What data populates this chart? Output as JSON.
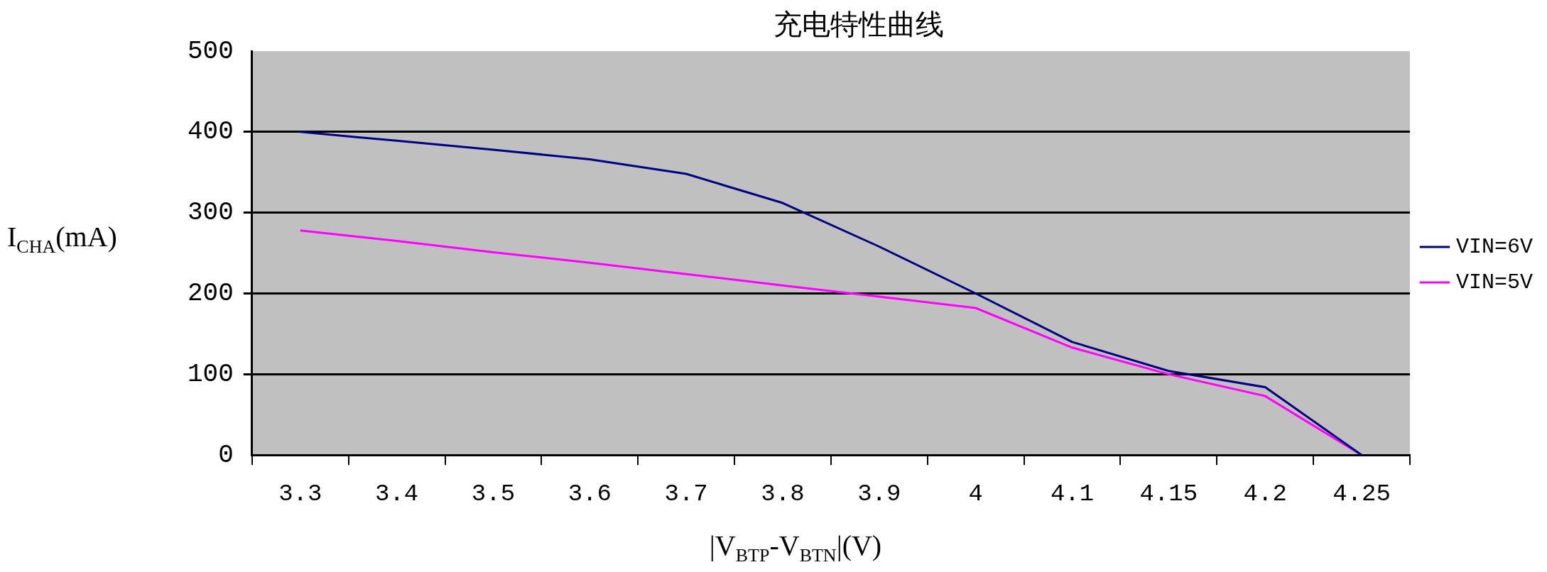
{
  "chart_data": {
    "type": "line",
    "title": "充电特性曲线",
    "xlabel": "|V$_{BTP}$-V$_{BTN}$|(V)",
    "ylabel": "I$_{CHA}$(mA)",
    "categories": [
      "3.3",
      "3.4",
      "3.5",
      "3.6",
      "3.7",
      "3.8",
      "3.9",
      "4",
      "4.1",
      "4.15",
      "4.2",
      "4.25"
    ],
    "series": [
      {
        "name": "VIN=6V",
        "color": "#000080",
        "values": [
          400,
          389,
          378,
          366,
          348,
          312,
          258,
          200,
          140,
          104,
          84,
          0
        ]
      },
      {
        "name": "VIN=5V",
        "color": "#ff00ff",
        "values": [
          278,
          265,
          251,
          238,
          224,
          210,
          196,
          182,
          133,
          100,
          73,
          0
        ]
      }
    ],
    "ylim": [
      0,
      500
    ],
    "yticks": [
      0,
      100,
      200,
      300,
      400,
      500
    ],
    "grid": "y",
    "legend": "right",
    "marker": "none",
    "line_style": "solid"
  }
}
